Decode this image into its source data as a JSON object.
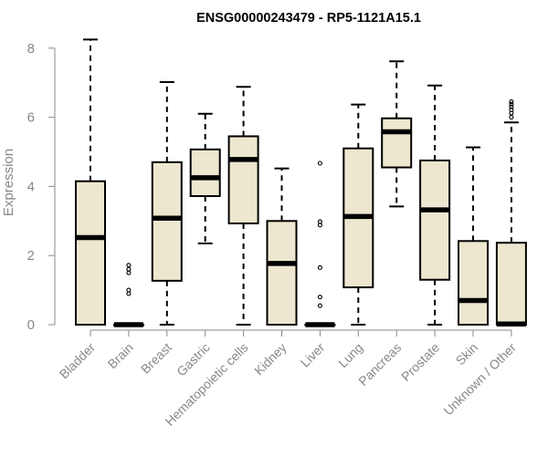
{
  "chart_data": {
    "type": "boxplot",
    "title": "ENSG00000243479 - RP5-1121A15.1",
    "xlabel": "",
    "ylabel": "Expression",
    "ylim": [
      0,
      8.3
    ],
    "yticks": [
      "0",
      "2",
      "4",
      "6",
      "8"
    ],
    "grid": false,
    "box_color": "#ede7cf",
    "categories": [
      "Bladder",
      "Brain",
      "Breast",
      "Gastric",
      "Hematopoietic cells",
      "Kidney",
      "Liver",
      "Lung",
      "Pancreas",
      "Prostate",
      "Skin",
      "Unknown / Other"
    ],
    "series": [
      {
        "name": "Bladder",
        "whisker_low": 0,
        "q1": 0,
        "median": 2.52,
        "q3": 4.15,
        "whisker_high": 8.25,
        "outliers": []
      },
      {
        "name": "Brain",
        "whisker_low": 0,
        "q1": 0,
        "median": 0,
        "q3": 0,
        "whisker_high": 0,
        "outliers": [
          0.9,
          1.0,
          1.5,
          1.6,
          1.72
        ]
      },
      {
        "name": "Breast",
        "whisker_low": 0,
        "q1": 1.27,
        "median": 3.08,
        "q3": 4.7,
        "whisker_high": 7.02,
        "outliers": []
      },
      {
        "name": "Gastric",
        "whisker_low": 2.35,
        "q1": 3.72,
        "median": 4.25,
        "q3": 5.07,
        "whisker_high": 6.1,
        "outliers": []
      },
      {
        "name": "Hematopoietic cells",
        "whisker_low": 0,
        "q1": 2.93,
        "median": 4.78,
        "q3": 5.45,
        "whisker_high": 6.88,
        "outliers": []
      },
      {
        "name": "Kidney",
        "whisker_low": 0,
        "q1": 0,
        "median": 1.77,
        "q3": 3.0,
        "whisker_high": 4.52,
        "outliers": []
      },
      {
        "name": "Liver",
        "whisker_low": 0,
        "q1": 0,
        "median": 0,
        "q3": 0,
        "whisker_high": 0,
        "outliers": [
          0.55,
          0.8,
          1.65,
          2.88,
          2.98,
          4.67
        ]
      },
      {
        "name": "Lung",
        "whisker_low": 0,
        "q1": 1.08,
        "median": 3.13,
        "q3": 5.1,
        "whisker_high": 6.37,
        "outliers": []
      },
      {
        "name": "Pancreas",
        "whisker_low": 3.42,
        "q1": 4.55,
        "median": 5.58,
        "q3": 5.97,
        "whisker_high": 7.62,
        "outliers": []
      },
      {
        "name": "Prostate",
        "whisker_low": 0,
        "q1": 1.3,
        "median": 3.32,
        "q3": 4.75,
        "whisker_high": 6.92,
        "outliers": []
      },
      {
        "name": "Skin",
        "whisker_low": 0,
        "q1": 0,
        "median": 0.7,
        "q3": 2.42,
        "whisker_high": 5.13,
        "outliers": []
      },
      {
        "name": "Unknown / Other",
        "whisker_low": 0,
        "q1": 0,
        "median": 0.02,
        "q3": 2.37,
        "whisker_high": 5.85,
        "outliers": [
          6.0,
          6.12,
          6.22,
          6.3,
          6.38,
          6.45
        ]
      }
    ]
  }
}
